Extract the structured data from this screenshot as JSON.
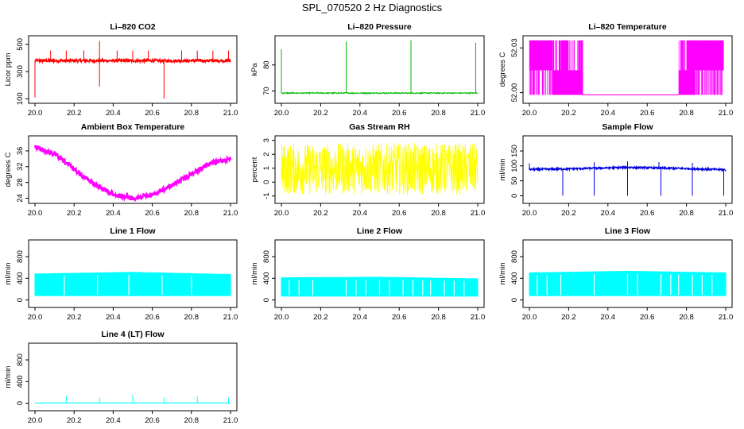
{
  "figure": {
    "title": "SPL_070520  2 Hz Diagnostics"
  },
  "chart_data": [
    {
      "id": "co2",
      "type": "line",
      "title": "Li–820 CO2",
      "xlabel": "",
      "ylabel": "Licor ppm",
      "color": "#ff0000",
      "xlim": [
        20.0,
        21.0
      ],
      "ylim": [
        90,
        540
      ],
      "xticks": [
        "20.0",
        "20.2",
        "20.4",
        "20.6",
        "20.8",
        "21.0"
      ],
      "yticks": [
        100,
        300,
        500
      ],
      "baseline": 380,
      "noise": 10,
      "spikes": [
        {
          "x": 20.0,
          "y": 110
        },
        {
          "x": 20.08,
          "y": 455
        },
        {
          "x": 20.16,
          "y": 455
        },
        {
          "x": 20.25,
          "y": 455
        },
        {
          "x": 20.33,
          "y": 525
        },
        {
          "x": 20.33,
          "y": 190
        },
        {
          "x": 20.42,
          "y": 455
        },
        {
          "x": 20.5,
          "y": 455
        },
        {
          "x": 20.58,
          "y": 455
        },
        {
          "x": 20.66,
          "y": 100
        },
        {
          "x": 20.75,
          "y": 455
        },
        {
          "x": 20.83,
          "y": 455
        },
        {
          "x": 20.91,
          "y": 455
        },
        {
          "x": 20.99,
          "y": 455
        }
      ]
    },
    {
      "id": "pressure",
      "type": "line",
      "title": "Li–820 Pressure",
      "xlabel": "",
      "ylabel": "kPa",
      "color": "#00bb00",
      "xlim": [
        20.0,
        21.0
      ],
      "ylim": [
        66.5,
        90
      ],
      "xticks": [
        "20.0",
        "20.2",
        "20.4",
        "20.6",
        "20.8",
        "21.0"
      ],
      "yticks": [
        70,
        80
      ],
      "baseline": 69.2,
      "noise": 0.2,
      "spikes": [
        {
          "x": 20.0,
          "y": 86
        },
        {
          "x": 20.33,
          "y": 89
        },
        {
          "x": 20.66,
          "y": 89.5
        },
        {
          "x": 20.99,
          "y": 88.5
        }
      ]
    },
    {
      "id": "temperature",
      "type": "line",
      "title": "Li–820 Temperature",
      "xlabel": "",
      "ylabel": "degrees C",
      "color": "#ff00ff",
      "xlim": [
        20.0,
        21.0
      ],
      "ylim": [
        51.995,
        52.036
      ],
      "xticks": [
        "20.0",
        "20.2",
        "20.4",
        "20.6",
        "20.8",
        "21.0"
      ],
      "yticks": [
        "52.00",
        "52.03"
      ],
      "level_high": 52.035,
      "level_mid": 52.015,
      "level_low": 51.9985
    },
    {
      "id": "ambient",
      "type": "line",
      "title": "Ambient Box Temperature",
      "xlabel": "",
      "ylabel": "degrees C",
      "color": "#ff00ff",
      "xlim": [
        20.0,
        21.0
      ],
      "ylim": [
        23.5,
        39
      ],
      "xticks": [
        "20.0",
        "20.2",
        "20.4",
        "20.6",
        "20.8",
        "21.0"
      ],
      "yticks": [
        24,
        28,
        32,
        36
      ],
      "points": [
        [
          20.0,
          37.6
        ],
        [
          20.1,
          35.8
        ],
        [
          20.2,
          32.0
        ],
        [
          20.3,
          28.2
        ],
        [
          20.4,
          25.6
        ],
        [
          20.5,
          24.6
        ],
        [
          20.6,
          25.4
        ],
        [
          20.7,
          27.8
        ],
        [
          20.8,
          30.8
        ],
        [
          20.9,
          33.5
        ],
        [
          21.0,
          34.6
        ]
      ]
    },
    {
      "id": "rh",
      "type": "line",
      "title": "Gas Stream RH",
      "xlabel": "",
      "ylabel": "percent",
      "color": "#ffff00",
      "xlim": [
        20.0,
        21.0
      ],
      "ylim": [
        -1.3,
        3.1
      ],
      "xticks": [
        "20.0",
        "20.2",
        "20.4",
        "20.6",
        "20.8",
        "21.0"
      ],
      "yticks": [
        -1,
        0,
        1,
        2,
        3
      ],
      "band": [
        -0.9,
        2.8
      ],
      "mean": 1.1
    },
    {
      "id": "sample",
      "type": "line",
      "title": "Sample Flow",
      "xlabel": "",
      "ylabel": "ml/min",
      "color": "#0000dd",
      "xlim": [
        20.0,
        21.0
      ],
      "ylim": [
        -15,
        190
      ],
      "xticks": [
        "20.0",
        "20.2",
        "20.4",
        "20.6",
        "20.8",
        "21.0"
      ],
      "yticks": [
        0,
        50,
        100,
        150
      ],
      "points": [
        [
          20.0,
          88
        ],
        [
          20.2,
          90
        ],
        [
          20.5,
          95
        ],
        [
          20.8,
          91
        ],
        [
          21.0,
          87
        ]
      ],
      "drops": [
        20.17,
        20.33,
        20.5,
        20.67,
        20.83,
        20.99
      ],
      "peaks": [
        20.0,
        20.33,
        20.5,
        20.66,
        20.83
      ]
    },
    {
      "id": "line1",
      "type": "area",
      "title": "Line 1 Flow",
      "xlabel": "",
      "ylabel": "ml/min",
      "color": "#00ffff",
      "xlim": [
        20.0,
        21.0
      ],
      "ylim": [
        -80,
        1050
      ],
      "xticks": [
        "20.0",
        "20.2",
        "20.4",
        "20.6",
        "20.8",
        "21.0"
      ],
      "yticks": [
        0,
        400,
        800
      ],
      "bottom": 80,
      "top": [
        [
          20.0,
          480
        ],
        [
          20.5,
          510
        ],
        [
          21.0,
          470
        ]
      ],
      "gaps": [
        20.15,
        20.32,
        20.48,
        20.65,
        20.8
      ]
    },
    {
      "id": "line2",
      "type": "area",
      "title": "Line 2 Flow",
      "xlabel": "",
      "ylabel": "ml/min",
      "color": "#00ffff",
      "xlim": [
        20.0,
        21.0
      ],
      "ylim": [
        -80,
        1050
      ],
      "xticks": [
        "20.0",
        "20.2",
        "20.4",
        "20.6",
        "20.8",
        "21.0"
      ],
      "yticks": [
        0,
        400,
        800
      ],
      "bottom": 70,
      "top": [
        [
          20.0,
          410
        ],
        [
          20.5,
          420
        ],
        [
          21.0,
          390
        ]
      ],
      "gaps": [
        20.04,
        20.09,
        20.16,
        20.33,
        20.38,
        20.43,
        20.5,
        20.55,
        20.62,
        20.67,
        20.72,
        20.76,
        20.83,
        20.88,
        20.93
      ]
    },
    {
      "id": "line3",
      "type": "area",
      "title": "Line 3 Flow",
      "xlabel": "",
      "ylabel": "ml/min",
      "color": "#00ffff",
      "xlim": [
        20.0,
        21.0
      ],
      "ylim": [
        -80,
        1050
      ],
      "xticks": [
        "20.0",
        "20.2",
        "20.4",
        "20.6",
        "20.8",
        "21.0"
      ],
      "yticks": [
        0,
        400,
        800
      ],
      "bottom": 80,
      "top": [
        [
          20.0,
          500
        ],
        [
          20.5,
          530
        ],
        [
          21.0,
          500
        ]
      ],
      "gaps": [
        20.04,
        20.09,
        20.16,
        20.33,
        20.5,
        20.55,
        20.67,
        20.72,
        20.76,
        20.83,
        20.88,
        20.93
      ]
    },
    {
      "id": "line4",
      "type": "line",
      "title": "Line 4 (LT) Flow",
      "xlabel": "",
      "ylabel": "ml/min",
      "color": "#00ffff",
      "xlim": [
        20.0,
        21.0
      ],
      "ylim": [
        -80,
        1050
      ],
      "xticks": [
        "20.0",
        "20.2",
        "20.4",
        "20.6",
        "20.8",
        "21.0"
      ],
      "yticks": [
        0,
        400,
        800
      ],
      "baseline": 5,
      "spikes": [
        {
          "x": 20.16,
          "y": 140
        },
        {
          "x": 20.33,
          "y": 100
        },
        {
          "x": 20.5,
          "y": 150
        },
        {
          "x": 20.66,
          "y": 100
        },
        {
          "x": 20.83,
          "y": 130
        },
        {
          "x": 20.99,
          "y": 100
        }
      ]
    }
  ]
}
